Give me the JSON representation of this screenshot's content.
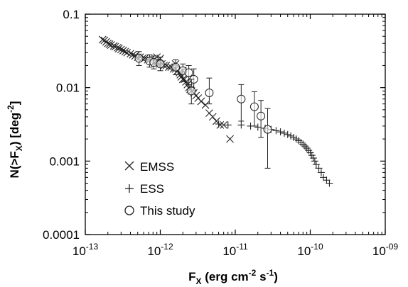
{
  "chart_data": {
    "type": "scatter",
    "xscale": "log",
    "yscale": "log",
    "xlim": [
      1e-13,
      1e-09
    ],
    "ylim": [
      0.0001,
      0.1
    ],
    "grid": false,
    "legend_position": "bottom-left",
    "xlabel": {
      "base": "F",
      "sub": "X",
      "mid1": " (erg cm",
      "sup1": "-2",
      "mid2": " s",
      "sup2": "-1",
      "end": ")"
    },
    "ylabel": {
      "pre": "N(>F",
      "sub": "X",
      "mid": ") [deg",
      "sup": "-2",
      "end": "]"
    },
    "x_ticks": [
      {
        "value": 1e-13,
        "base": "10",
        "exp": "-13"
      },
      {
        "value": 1e-12,
        "base": "10",
        "exp": "-12"
      },
      {
        "value": 1e-11,
        "base": "10",
        "exp": "-11"
      },
      {
        "value": 1e-10,
        "base": "10",
        "exp": "-10"
      },
      {
        "value": 1e-09,
        "base": "10",
        "exp": "-09"
      }
    ],
    "y_ticks": [
      {
        "value": 0.1,
        "label": "0.1"
      },
      {
        "value": 0.01,
        "label": "0.01"
      },
      {
        "value": 0.001,
        "label": "0.001"
      },
      {
        "value": 0.0001,
        "label": "0.0001"
      }
    ],
    "series": [
      {
        "name": "EMSS",
        "marker": "x",
        "points": [
          [
            1.7e-13,
            0.045
          ],
          [
            1.8e-13,
            0.044
          ],
          [
            1.9e-13,
            0.042
          ],
          [
            2e-13,
            0.04
          ],
          [
            2.1e-13,
            0.039
          ],
          [
            2.2e-13,
            0.038
          ],
          [
            2.4e-13,
            0.037
          ],
          [
            2.5e-13,
            0.036
          ],
          [
            2.7e-13,
            0.035
          ],
          [
            2.8e-13,
            0.034
          ],
          [
            3e-13,
            0.033
          ],
          [
            3.2e-13,
            0.032
          ],
          [
            3.4e-13,
            0.031
          ],
          [
            3.6e-13,
            0.03
          ],
          [
            4e-13,
            0.029
          ],
          [
            4.3e-13,
            0.028
          ],
          [
            4.6e-13,
            0.027
          ],
          [
            5e-13,
            0.026
          ],
          [
            5.4e-13,
            0.026
          ],
          [
            5.8e-13,
            0.025
          ],
          [
            6.2e-13,
            0.025
          ],
          [
            6.8e-13,
            0.024
          ],
          [
            7.3e-13,
            0.024
          ],
          [
            7.8e-13,
            0.023
          ],
          [
            8.4e-13,
            0.022
          ],
          [
            9e-13,
            0.022
          ],
          [
            9.8e-13,
            0.021
          ],
          [
            1.05e-12,
            0.021
          ],
          [
            1.12e-12,
            0.02
          ],
          [
            1.2e-12,
            0.02
          ],
          [
            1.3e-12,
            0.019
          ],
          [
            1.4e-12,
            0.019
          ],
          [
            1.5e-12,
            0.018
          ],
          [
            1.6e-12,
            0.018
          ],
          [
            1.7e-12,
            0.017
          ],
          [
            1.8e-12,
            0.016
          ],
          [
            1.85e-12,
            0.015
          ],
          [
            1.9e-12,
            0.014
          ],
          [
            2e-12,
            0.013
          ],
          [
            2.1e-12,
            0.013
          ],
          [
            2.2e-12,
            0.012
          ],
          [
            2.3e-12,
            0.011
          ],
          [
            2.4e-12,
            0.01
          ],
          [
            2.5e-12,
            0.0095
          ],
          [
            2.6e-12,
            0.009
          ],
          [
            2.8e-12,
            0.0085
          ],
          [
            3e-12,
            0.0078
          ],
          [
            3.2e-12,
            0.0072
          ],
          [
            3.5e-12,
            0.0065
          ],
          [
            4e-12,
            0.0058
          ],
          [
            4.5e-12,
            0.0045
          ],
          [
            5e-12,
            0.004
          ],
          [
            5.6e-12,
            0.0035
          ],
          [
            6.3e-12,
            0.0031
          ],
          [
            7e-12,
            0.0031
          ],
          [
            8.5e-12,
            0.002
          ],
          [
            9e-13,
            0.026
          ],
          [
            1e-12,
            0.025
          ],
          [
            1.6e-12,
            0.021
          ],
          [
            2e-12,
            0.017
          ]
        ]
      },
      {
        "name": "ESS",
        "marker": "plus",
        "points": [
          [
            6e-12,
            0.0032
          ],
          [
            8e-12,
            0.0031
          ],
          [
            1.2e-11,
            0.0031
          ],
          [
            1.6e-11,
            0.003
          ],
          [
            2e-11,
            0.0029
          ],
          [
            2.5e-11,
            0.0028
          ],
          [
            3e-11,
            0.0027
          ],
          [
            3.5e-11,
            0.0026
          ],
          [
            4e-11,
            0.0025
          ],
          [
            4.5e-11,
            0.0024
          ],
          [
            5e-11,
            0.0023
          ],
          [
            5.5e-11,
            0.0022
          ],
          [
            6e-11,
            0.0021
          ],
          [
            6.5e-11,
            0.002
          ],
          [
            7e-11,
            0.0019
          ],
          [
            7.5e-11,
            0.0018
          ],
          [
            8e-11,
            0.0017
          ],
          [
            8.5e-11,
            0.0016
          ],
          [
            9e-11,
            0.0015
          ],
          [
            9.5e-11,
            0.0014
          ],
          [
            1e-10,
            0.0013
          ],
          [
            1.05e-10,
            0.0012
          ],
          [
            1.1e-10,
            0.0011
          ],
          [
            1.15e-10,
            0.001
          ],
          [
            1.2e-10,
            0.0009
          ],
          [
            1.3e-10,
            0.0008
          ],
          [
            1.4e-10,
            0.0007
          ],
          [
            1.5e-10,
            0.0006
          ],
          [
            1.65e-10,
            0.00055
          ],
          [
            1.8e-10,
            0.0005
          ]
        ]
      },
      {
        "name": "This study",
        "marker": "circle",
        "points": [
          {
            "x": 5.2e-13,
            "y": 0.025,
            "ylo": 0.02,
            "yhi": 0.031
          },
          {
            "x": 7.2e-13,
            "y": 0.023,
            "ylo": 0.019,
            "yhi": 0.028
          },
          {
            "x": 8.2e-13,
            "y": 0.022,
            "ylo": 0.018,
            "yhi": 0.027
          },
          {
            "x": 1e-12,
            "y": 0.021,
            "ylo": 0.017,
            "yhi": 0.026
          },
          {
            "x": 1.6e-12,
            "y": 0.019,
            "ylo": 0.015,
            "yhi": 0.024
          },
          {
            "x": 2e-12,
            "y": 0.017,
            "ylo": 0.012,
            "yhi": 0.021
          },
          {
            "x": 2.4e-12,
            "y": 0.016,
            "ylo": 0.011,
            "yhi": 0.02
          },
          {
            "x": 2.8e-12,
            "y": 0.013,
            "ylo": 0.009,
            "yhi": 0.018
          },
          {
            "x": 2.6e-12,
            "y": 0.009,
            "ylo": 0.006,
            "yhi": 0.013
          },
          {
            "x": 4.5e-12,
            "y": 0.0085,
            "ylo": 0.006,
            "yhi": 0.0135
          },
          {
            "x": 1.2e-11,
            "y": 0.007,
            "ylo": 0.0035,
            "yhi": 0.011
          },
          {
            "x": 1.8e-11,
            "y": 0.0055,
            "ylo": 0.003,
            "yhi": 0.0088
          },
          {
            "x": 2.2e-11,
            "y": 0.0041,
            "ylo": 0.0021,
            "yhi": 0.0067
          },
          {
            "x": 2.7e-11,
            "y": 0.0027,
            "ylo": 0.0008,
            "yhi": 0.0052
          }
        ]
      }
    ]
  }
}
